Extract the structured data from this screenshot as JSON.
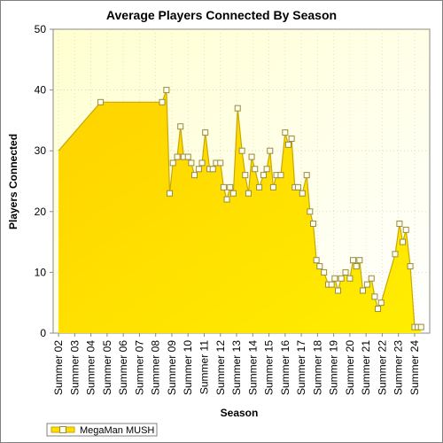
{
  "chart_data": {
    "type": "area",
    "title": "Average Players Connected By Season",
    "xlabel": "Season",
    "ylabel": "Players Connected",
    "ylim": [
      0,
      50
    ],
    "yticks": [
      0,
      10,
      20,
      30,
      40,
      50
    ],
    "grid": true,
    "legend_position": "bottom-left",
    "colors": {
      "area": "#ffdd00",
      "line": "#c9a800",
      "marker_fill": "#ffffee",
      "marker_stroke": "#9a8a40",
      "plot_bg_top": "#ffffd8",
      "plot_bg_bottom": "#ffffff"
    },
    "xticks": [
      "Summer 02",
      "Summer 03",
      "Summer 04",
      "Summer 05",
      "Summer 06",
      "Summer 07",
      "Summer 08",
      "Summer 09",
      "Summer 10",
      "Summer 11",
      "Summer 12",
      "Summer 13",
      "Summer 14",
      "Summer 15",
      "Summer 16",
      "Summer 17",
      "Summer 18",
      "Summer 19",
      "Summer 20",
      "Summer 21",
      "Summer 22",
      "Summer 23",
      "Summer 24"
    ],
    "series": [
      {
        "name": "MegaMan MUSH",
        "points": [
          {
            "x": 2.0,
            "y": 30,
            "marker": false
          },
          {
            "x": 3.95,
            "y": 38,
            "marker": true
          },
          {
            "x": 6.8,
            "y": 38,
            "marker": true
          },
          {
            "x": 7.0,
            "y": 40,
            "marker": true
          },
          {
            "x": 7.15,
            "y": 23,
            "marker": true
          },
          {
            "x": 7.3,
            "y": 28,
            "marker": true
          },
          {
            "x": 7.5,
            "y": 29,
            "marker": true
          },
          {
            "x": 7.65,
            "y": 34,
            "marker": true
          },
          {
            "x": 7.8,
            "y": 29,
            "marker": true
          },
          {
            "x": 8.0,
            "y": 29,
            "marker": true
          },
          {
            "x": 8.15,
            "y": 28,
            "marker": true
          },
          {
            "x": 8.3,
            "y": 26,
            "marker": true
          },
          {
            "x": 8.5,
            "y": 27,
            "marker": true
          },
          {
            "x": 8.65,
            "y": 28,
            "marker": true
          },
          {
            "x": 8.8,
            "y": 33,
            "marker": true
          },
          {
            "x": 9.0,
            "y": 27,
            "marker": true
          },
          {
            "x": 9.15,
            "y": 27,
            "marker": true
          },
          {
            "x": 9.3,
            "y": 28,
            "marker": true
          },
          {
            "x": 9.5,
            "y": 28,
            "marker": true
          },
          {
            "x": 9.65,
            "y": 24,
            "marker": true
          },
          {
            "x": 9.8,
            "y": 22,
            "marker": true
          },
          {
            "x": 9.95,
            "y": 24,
            "marker": true
          },
          {
            "x": 10.1,
            "y": 23,
            "marker": true
          },
          {
            "x": 10.3,
            "y": 37,
            "marker": true
          },
          {
            "x": 10.5,
            "y": 30,
            "marker": true
          },
          {
            "x": 10.65,
            "y": 26,
            "marker": true
          },
          {
            "x": 10.8,
            "y": 23,
            "marker": true
          },
          {
            "x": 10.95,
            "y": 29,
            "marker": true
          },
          {
            "x": 11.1,
            "y": 27,
            "marker": true
          },
          {
            "x": 11.3,
            "y": 24,
            "marker": true
          },
          {
            "x": 11.5,
            "y": 26,
            "marker": true
          },
          {
            "x": 11.65,
            "y": 27,
            "marker": true
          },
          {
            "x": 11.8,
            "y": 30,
            "marker": true
          },
          {
            "x": 11.95,
            "y": 24,
            "marker": true
          },
          {
            "x": 12.1,
            "y": 26,
            "marker": true
          },
          {
            "x": 12.3,
            "y": 26,
            "marker": true
          },
          {
            "x": 12.5,
            "y": 33,
            "marker": true
          },
          {
            "x": 12.65,
            "y": 31,
            "marker": true
          },
          {
            "x": 12.8,
            "y": 32,
            "marker": true
          },
          {
            "x": 12.95,
            "y": 24,
            "marker": true
          },
          {
            "x": 13.1,
            "y": 24,
            "marker": true
          },
          {
            "x": 13.3,
            "y": 23,
            "marker": true
          },
          {
            "x": 13.5,
            "y": 26,
            "marker": true
          },
          {
            "x": 13.65,
            "y": 20,
            "marker": true
          },
          {
            "x": 13.8,
            "y": 18,
            "marker": true
          },
          {
            "x": 13.95,
            "y": 12,
            "marker": true
          },
          {
            "x": 14.1,
            "y": 11,
            "marker": true
          },
          {
            "x": 14.3,
            "y": 10,
            "marker": true
          },
          {
            "x": 14.5,
            "y": 8,
            "marker": true
          },
          {
            "x": 14.65,
            "y": 8,
            "marker": true
          },
          {
            "x": 14.8,
            "y": 9,
            "marker": true
          },
          {
            "x": 14.95,
            "y": 7,
            "marker": true
          },
          {
            "x": 15.1,
            "y": 9,
            "marker": true
          },
          {
            "x": 15.3,
            "y": 10,
            "marker": true
          },
          {
            "x": 15.5,
            "y": 9,
            "marker": true
          },
          {
            "x": 15.65,
            "y": 12,
            "marker": true
          },
          {
            "x": 15.8,
            "y": 11,
            "marker": true
          },
          {
            "x": 15.95,
            "y": 12,
            "marker": true
          },
          {
            "x": 16.1,
            "y": 7,
            "marker": true
          },
          {
            "x": 16.3,
            "y": 8,
            "marker": true
          },
          {
            "x": 16.5,
            "y": 9,
            "marker": true
          },
          {
            "x": 16.65,
            "y": 6,
            "marker": true
          },
          {
            "x": 16.8,
            "y": 4,
            "marker": true
          },
          {
            "x": 16.95,
            "y": 5,
            "marker": true
          },
          {
            "x": 17.6,
            "y": 13,
            "marker": true
          },
          {
            "x": 17.8,
            "y": 18,
            "marker": true
          },
          {
            "x": 17.95,
            "y": 15,
            "marker": true
          },
          {
            "x": 18.1,
            "y": 17,
            "marker": true
          },
          {
            "x": 18.3,
            "y": 11,
            "marker": true
          },
          {
            "x": 18.5,
            "y": 1,
            "marker": true
          },
          {
            "x": 18.65,
            "y": 1,
            "marker": true
          },
          {
            "x": 18.8,
            "y": 1,
            "marker": true
          }
        ]
      }
    ]
  }
}
